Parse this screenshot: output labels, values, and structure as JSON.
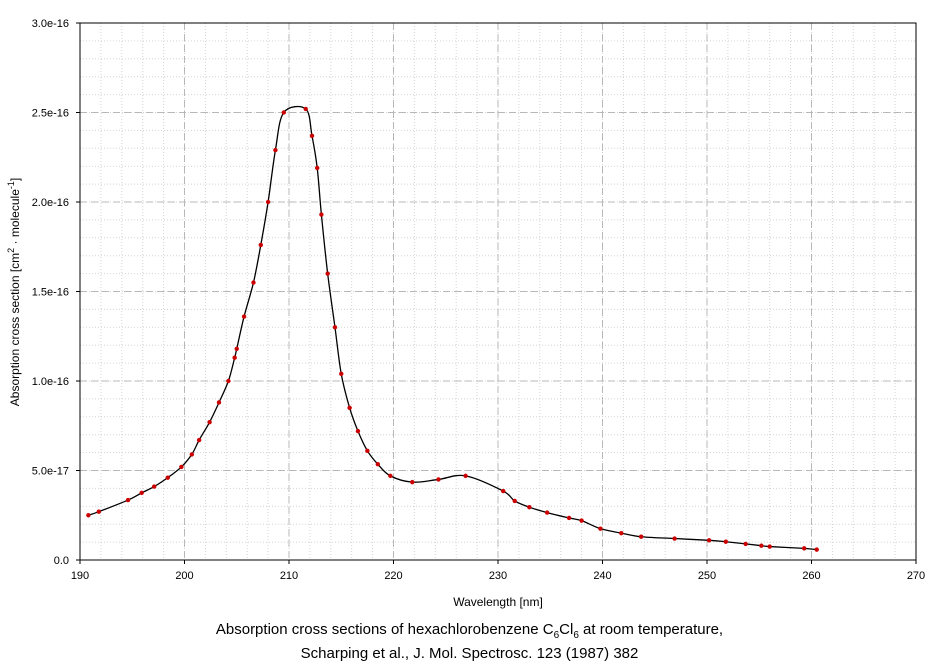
{
  "chart_data": {
    "type": "line",
    "title": "",
    "xlabel": "Wavelength [nm]",
    "ylabel": {
      "pre": "Absorption cross section [cm",
      "sup1": "2",
      "mid": " · molecule",
      "sup2": "-1",
      "post": "]"
    },
    "xlim": [
      190,
      270
    ],
    "ylim": [
      0,
      3e-16
    ],
    "x_ticks": [
      "190",
      "200",
      "210",
      "220",
      "230",
      "240",
      "250",
      "260",
      "270"
    ],
    "y_ticks": [
      "0.0",
      "5.0e-17",
      "1.0e-16",
      "1.5e-16",
      "2.0e-16",
      "2.5e-16",
      "3.0e-16"
    ],
    "grid": true,
    "line_color": "#000000",
    "marker_color": "#cc0000",
    "series": [
      {
        "x": [
          190.8,
          191.8,
          194.6,
          195.9,
          197.1,
          198.4,
          199.7,
          200.7,
          201.4,
          202.4,
          203.3,
          204.2,
          204.8,
          205.0,
          205.7,
          206.6,
          207.3,
          208.0,
          208.7,
          209.5,
          211.6,
          212.2,
          212.7,
          213.1,
          213.7,
          214.4,
          215.0,
          215.8,
          216.6,
          217.5,
          218.5,
          219.7,
          221.8,
          224.3,
          226.9,
          230.5,
          231.6,
          233.0,
          234.7,
          236.8,
          238.0,
          239.8,
          241.8,
          243.7,
          246.9,
          250.2,
          251.8,
          253.7,
          255.2,
          256.0,
          259.3,
          260.5
        ],
        "y": [
          2.5e-17,
          2.7e-17,
          3.35e-17,
          3.75e-17,
          4.1e-17,
          4.6e-17,
          5.2e-17,
          5.9e-17,
          6.7e-17,
          7.7e-17,
          8.8e-17,
          1e-16,
          1.13e-16,
          1.18e-16,
          1.36e-16,
          1.55e-16,
          1.76e-16,
          2e-16,
          2.29e-16,
          2.5e-16,
          2.52e-16,
          2.37e-16,
          2.19e-16,
          1.93e-16,
          1.6e-16,
          1.3e-16,
          1.04e-16,
          8.5e-17,
          7.2e-17,
          6.1e-17,
          5.35e-17,
          4.7e-17,
          4.35e-17,
          4.5e-17,
          4.7e-17,
          3.85e-17,
          3.3e-17,
          2.95e-17,
          2.65e-17,
          2.35e-17,
          2.2e-17,
          1.75e-17,
          1.5e-17,
          1.3e-17,
          1.2e-17,
          1.1e-17,
          1.02e-17,
          9e-18,
          8e-18,
          7.5e-18,
          6.5e-18,
          5.8e-18
        ]
      }
    ]
  },
  "caption": {
    "line1_pre": "Absorption cross sections of hexachlorobenzene C",
    "sub1": "6",
    "line1_mid": "Cl",
    "sub2": "6",
    "line1_post": " at room temperature,",
    "line2": "Scharping et al., J. Mol. Spectrosc. 123 (1987) 382"
  }
}
